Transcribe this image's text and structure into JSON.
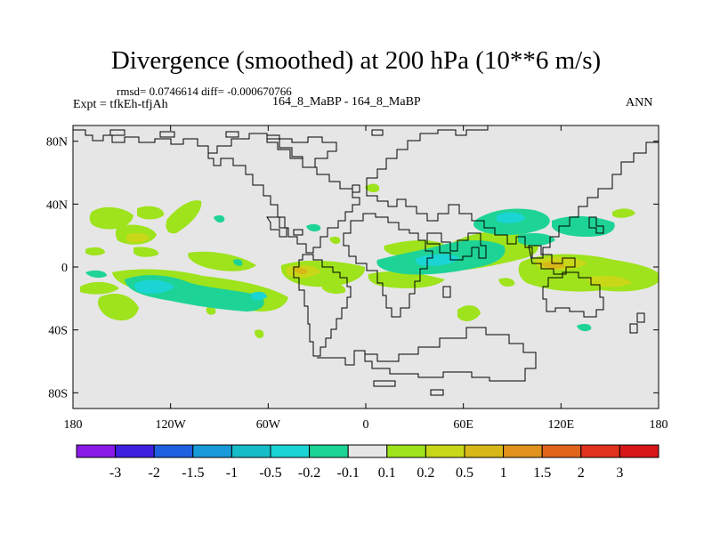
{
  "title": "Divergence (smoothed) at 200 hPa (10**6 m/s)",
  "stats": "rmsd= 0.0746614 diff= -0.000670766",
  "experiment": "Expt = tfkEh-tfjAh",
  "cases": "164_8_MaBP - 164_8_MaBP",
  "season": "ANN",
  "map": {
    "background_color": "#e6e6e6",
    "y_ticks": [
      "80N",
      "40N",
      "0",
      "40S",
      "80S"
    ],
    "x_ticks": [
      "180",
      "120W",
      "60W",
      "0",
      "60E",
      "120E",
      "180"
    ]
  },
  "colorbar": {
    "colors": [
      "#8a1ae8",
      "#3f1fe0",
      "#1f5fe0",
      "#189ad8",
      "#17bcc9",
      "#1bd4d4",
      "#1ed396",
      "#e6e6e6",
      "#9ee31c",
      "#c8d818",
      "#d8b818",
      "#e0921c",
      "#e0641c",
      "#e0321c",
      "#d81818"
    ],
    "labels": [
      "-3",
      "-2",
      "-1.5",
      "-1",
      "-0.5",
      "-0.2",
      "-0.1",
      "0.1",
      "0.2",
      "0.5",
      "1",
      "1.5",
      "2",
      "3"
    ]
  }
}
